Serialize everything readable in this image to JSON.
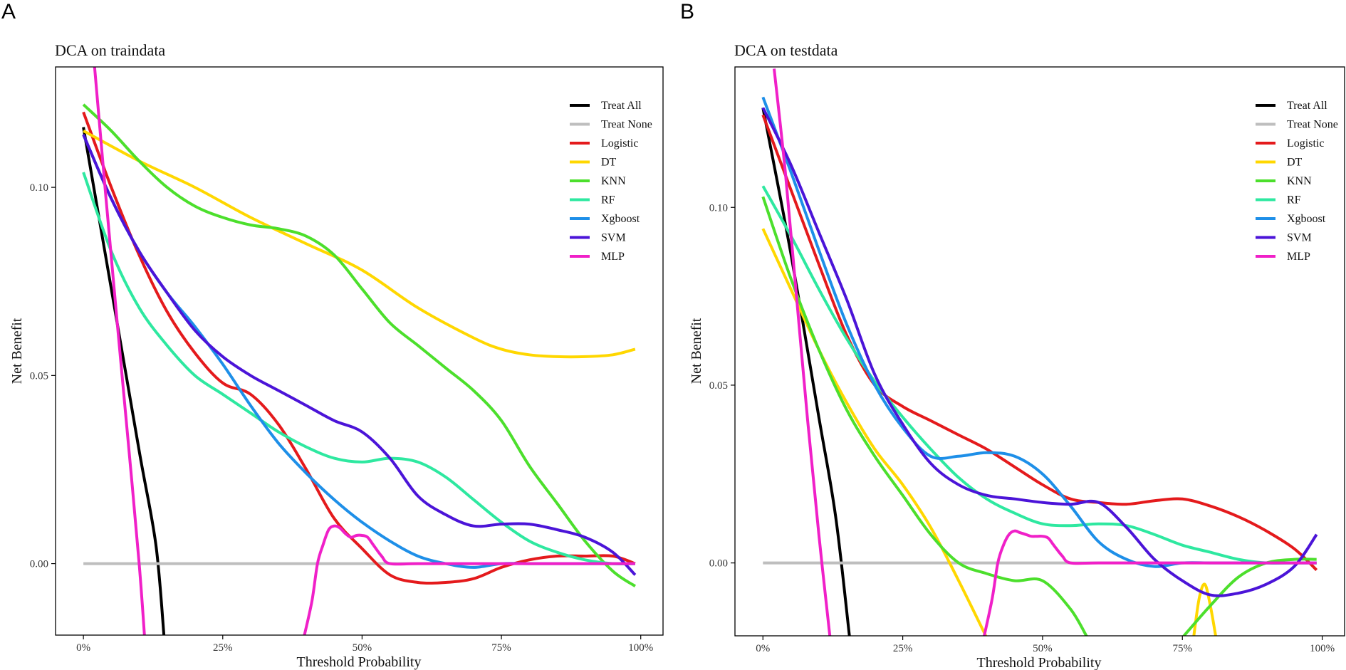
{
  "chart_data": [
    {
      "panel_label": "A",
      "type": "line",
      "title": "DCA on traindata",
      "xlabel": "Threshold Probability",
      "ylabel": "Net Benefit",
      "xlim": [
        -0.05,
        1.04
      ],
      "ylim": [
        -0.019,
        0.132
      ],
      "x_ticks": [
        0,
        0.25,
        0.5,
        0.75,
        1.0
      ],
      "x_tick_labels": [
        "0%",
        "25%",
        "50%",
        "75%",
        "100%"
      ],
      "y_ticks": [
        0.0,
        0.05,
        0.1
      ],
      "y_tick_labels": [
        "0.00",
        "0.05",
        "0.10"
      ],
      "grid": false,
      "legend_position": "top-right",
      "series": [
        {
          "name": "Treat All",
          "color": "#000000",
          "x": [
            0.0,
            0.05,
            0.1,
            0.13,
            0.145
          ],
          "y": [
            0.116,
            0.073,
            0.03,
            0.005,
            -0.02
          ]
        },
        {
          "name": "Treat None",
          "color": "#BEBEBE",
          "x": [
            0.0,
            0.99
          ],
          "y": [
            0.0,
            0.0
          ]
        },
        {
          "name": "Logistic",
          "color": "#E41A1C",
          "x": [
            0.0,
            0.05,
            0.1,
            0.15,
            0.2,
            0.25,
            0.3,
            0.35,
            0.4,
            0.45,
            0.5,
            0.55,
            0.6,
            0.65,
            0.7,
            0.75,
            0.8,
            0.85,
            0.9,
            0.95,
            0.99
          ],
          "y": [
            0.12,
            0.1,
            0.082,
            0.067,
            0.056,
            0.048,
            0.045,
            0.037,
            0.025,
            0.012,
            0.004,
            -0.003,
            -0.005,
            -0.005,
            -0.004,
            -0.001,
            0.001,
            0.002,
            0.002,
            0.002,
            0.0
          ]
        },
        {
          "name": "DT",
          "color": "#FFD700",
          "x": [
            0.0,
            0.1,
            0.2,
            0.3,
            0.4,
            0.5,
            0.6,
            0.7,
            0.75,
            0.8,
            0.85,
            0.9,
            0.95,
            0.99
          ],
          "y": [
            0.115,
            0.107,
            0.1,
            0.092,
            0.085,
            0.078,
            0.068,
            0.06,
            0.057,
            0.0555,
            0.055,
            0.055,
            0.0555,
            0.057
          ]
        },
        {
          "name": "KNN",
          "color": "#4CDF2C",
          "x": [
            0.0,
            0.05,
            0.1,
            0.15,
            0.2,
            0.25,
            0.3,
            0.35,
            0.4,
            0.45,
            0.5,
            0.55,
            0.6,
            0.65,
            0.7,
            0.75,
            0.8,
            0.85,
            0.9,
            0.95,
            0.99
          ],
          "y": [
            0.122,
            0.115,
            0.107,
            0.1,
            0.095,
            0.092,
            0.09,
            0.089,
            0.087,
            0.082,
            0.073,
            0.064,
            0.058,
            0.052,
            0.046,
            0.038,
            0.026,
            0.016,
            0.006,
            -0.002,
            -0.006
          ]
        },
        {
          "name": "RF",
          "color": "#2EE8A0",
          "x": [
            0.0,
            0.05,
            0.1,
            0.15,
            0.2,
            0.25,
            0.3,
            0.35,
            0.4,
            0.45,
            0.5,
            0.55,
            0.6,
            0.65,
            0.7,
            0.75,
            0.8,
            0.85,
            0.9,
            0.95,
            0.99
          ],
          "y": [
            0.104,
            0.083,
            0.068,
            0.058,
            0.05,
            0.045,
            0.04,
            0.035,
            0.031,
            0.028,
            0.027,
            0.028,
            0.027,
            0.023,
            0.017,
            0.011,
            0.006,
            0.003,
            0.001,
            0.0,
            0.0
          ]
        },
        {
          "name": "Xgboost",
          "color": "#1E8FE8",
          "x": [
            0.0,
            0.05,
            0.1,
            0.15,
            0.2,
            0.25,
            0.3,
            0.35,
            0.4,
            0.45,
            0.5,
            0.55,
            0.6,
            0.65,
            0.7,
            0.75,
            0.8,
            0.85,
            0.9,
            0.95,
            0.99
          ],
          "y": [
            0.114,
            0.097,
            0.083,
            0.072,
            0.063,
            0.053,
            0.042,
            0.032,
            0.024,
            0.017,
            0.011,
            0.006,
            0.002,
            0.0,
            -0.001,
            0.0,
            0.0,
            0.0,
            0.0,
            0.0,
            0.0
          ]
        },
        {
          "name": "SVM",
          "color": "#4B14D8",
          "x": [
            0.0,
            0.05,
            0.1,
            0.15,
            0.2,
            0.25,
            0.3,
            0.35,
            0.4,
            0.45,
            0.5,
            0.55,
            0.6,
            0.65,
            0.7,
            0.75,
            0.8,
            0.85,
            0.9,
            0.95,
            0.99
          ],
          "y": [
            0.114,
            0.097,
            0.083,
            0.072,
            0.062,
            0.055,
            0.05,
            0.046,
            0.042,
            0.038,
            0.035,
            0.028,
            0.018,
            0.013,
            0.01,
            0.0105,
            0.0105,
            0.009,
            0.007,
            0.003,
            -0.003
          ]
        },
        {
          "name": "MLP",
          "color": "#F020C8",
          "segments": [
            {
              "x": [
                0.02,
                0.04,
                0.06,
                0.08,
                0.1,
                0.11
              ],
              "y": [
                0.132,
                0.098,
                0.065,
                0.033,
                0.0,
                -0.02
              ]
            },
            {
              "x": [
                0.395,
                0.41,
                0.42,
                0.43,
                0.44,
                0.45,
                0.46,
                0.47,
                0.48,
                0.49,
                0.5,
                0.51,
                0.52,
                0.535,
                0.55,
                0.6,
                0.7,
                0.8,
                0.9,
                0.99
              ],
              "y": [
                -0.02,
                -0.01,
                0.0,
                0.005,
                0.009,
                0.01,
                0.0095,
                0.008,
                0.007,
                0.0075,
                0.0075,
                0.007,
                0.005,
                0.002,
                0.0,
                0.0,
                0.0,
                0.0,
                0.0,
                0.0
              ]
            }
          ]
        }
      ]
    },
    {
      "panel_label": "B",
      "type": "line",
      "title": "DCA on testdata",
      "xlabel": "Threshold Probability",
      "ylabel": "Net Benefit",
      "xlim": [
        -0.05,
        1.04
      ],
      "ylim": [
        -0.0205,
        0.1395
      ],
      "x_ticks": [
        0,
        0.25,
        0.5,
        0.75,
        1.0
      ],
      "x_tick_labels": [
        "0%",
        "25%",
        "50%",
        "75%",
        "100%"
      ],
      "y_ticks": [
        0.0,
        0.05,
        0.1
      ],
      "y_tick_labels": [
        "0.00",
        "0.05",
        "0.10"
      ],
      "grid": false,
      "legend_position": "top-right",
      "series": [
        {
          "name": "Treat All",
          "color": "#000000",
          "x": [
            0.0,
            0.05,
            0.1,
            0.13,
            0.155
          ],
          "y": [
            0.128,
            0.087,
            0.041,
            0.013,
            -0.021
          ]
        },
        {
          "name": "Treat None",
          "color": "#BEBEBE",
          "x": [
            0.0,
            0.99
          ],
          "y": [
            0.0,
            0.0
          ]
        },
        {
          "name": "Logistic",
          "color": "#E41A1C",
          "x": [
            0.0,
            0.05,
            0.1,
            0.15,
            0.2,
            0.25,
            0.3,
            0.35,
            0.4,
            0.45,
            0.5,
            0.55,
            0.6,
            0.65,
            0.7,
            0.75,
            0.8,
            0.85,
            0.9,
            0.95,
            0.99
          ],
          "y": [
            0.126,
            0.105,
            0.084,
            0.064,
            0.05,
            0.044,
            0.04,
            0.036,
            0.032,
            0.027,
            0.022,
            0.018,
            0.017,
            0.0165,
            0.0175,
            0.018,
            0.016,
            0.013,
            0.009,
            0.004,
            -0.002
          ]
        },
        {
          "name": "DT",
          "color": "#FFD700",
          "segments": [
            {
              "x": [
                0.0,
                0.05,
                0.1,
                0.15,
                0.2,
                0.25,
                0.3,
                0.35,
                0.4
              ],
              "y": [
                0.094,
                0.077,
                0.06,
                0.045,
                0.032,
                0.022,
                0.01,
                -0.005,
                -0.021
              ]
            },
            {
              "x": [
                0.77,
                0.78,
                0.79,
                0.8,
                0.81
              ],
              "y": [
                -0.021,
                -0.01,
                -0.006,
                -0.012,
                -0.021
              ]
            }
          ]
        },
        {
          "name": "KNN",
          "color": "#4CDF2C",
          "segments": [
            {
              "x": [
                0.0,
                0.05,
                0.1,
                0.15,
                0.2,
                0.25,
                0.3,
                0.35,
                0.4,
                0.45,
                0.5,
                0.55,
                0.58
              ],
              "y": [
                0.103,
                0.08,
                0.06,
                0.043,
                0.03,
                0.019,
                0.008,
                0.0,
                -0.003,
                -0.005,
                -0.005,
                -0.013,
                -0.021
              ]
            },
            {
              "x": [
                0.75,
                0.8,
                0.85,
                0.9,
                0.95,
                0.99
              ],
              "y": [
                -0.021,
                -0.012,
                -0.004,
                0.0,
                0.001,
                0.001
              ]
            }
          ]
        },
        {
          "name": "RF",
          "color": "#2EE8A0",
          "x": [
            0.0,
            0.05,
            0.1,
            0.15,
            0.2,
            0.25,
            0.3,
            0.35,
            0.4,
            0.45,
            0.5,
            0.55,
            0.6,
            0.65,
            0.7,
            0.75,
            0.8,
            0.85,
            0.9,
            0.95,
            0.99
          ],
          "y": [
            0.106,
            0.092,
            0.077,
            0.063,
            0.051,
            0.041,
            0.032,
            0.024,
            0.018,
            0.014,
            0.011,
            0.0105,
            0.011,
            0.0105,
            0.008,
            0.005,
            0.003,
            0.001,
            0.0,
            0.0,
            0.0
          ]
        },
        {
          "name": "Xgboost",
          "color": "#1E8FE8",
          "x": [
            0.0,
            0.05,
            0.1,
            0.15,
            0.2,
            0.25,
            0.3,
            0.35,
            0.4,
            0.45,
            0.5,
            0.55,
            0.6,
            0.65,
            0.7,
            0.75,
            0.8,
            0.85,
            0.9,
            0.95,
            0.99
          ],
          "y": [
            0.131,
            0.11,
            0.088,
            0.067,
            0.05,
            0.038,
            0.03,
            0.03,
            0.031,
            0.03,
            0.025,
            0.016,
            0.006,
            0.001,
            -0.001,
            0.0,
            0.0,
            0.0,
            0.0,
            0.0,
            0.0
          ]
        },
        {
          "name": "SVM",
          "color": "#4B14D8",
          "x": [
            0.0,
            0.05,
            0.1,
            0.15,
            0.2,
            0.25,
            0.3,
            0.35,
            0.4,
            0.45,
            0.5,
            0.55,
            0.6,
            0.65,
            0.7,
            0.75,
            0.8,
            0.85,
            0.9,
            0.95,
            0.99
          ],
          "y": [
            0.128,
            0.112,
            0.093,
            0.074,
            0.053,
            0.039,
            0.028,
            0.022,
            0.019,
            0.018,
            0.017,
            0.0165,
            0.017,
            0.01,
            0.001,
            -0.005,
            -0.009,
            -0.0085,
            -0.006,
            -0.001,
            0.008
          ]
        },
        {
          "name": "MLP",
          "color": "#F020C8",
          "segments": [
            {
              "x": [
                0.02,
                0.04,
                0.06,
                0.08,
                0.1,
                0.12
              ],
              "y": [
                0.139,
                0.11,
                0.075,
                0.04,
                0.008,
                -0.021
              ]
            },
            {
              "x": [
                0.395,
                0.41,
                0.42,
                0.43,
                0.44,
                0.45,
                0.46,
                0.47,
                0.48,
                0.49,
                0.5,
                0.51,
                0.52,
                0.535,
                0.55,
                0.6,
                0.7,
                0.8,
                0.9,
                0.99
              ],
              "y": [
                -0.021,
                -0.01,
                0.0,
                0.005,
                0.008,
                0.009,
                0.0085,
                0.008,
                0.0075,
                0.0075,
                0.0075,
                0.007,
                0.005,
                0.002,
                0.0,
                0.0,
                0.0,
                0.0,
                0.0,
                0.0
              ]
            }
          ]
        }
      ]
    }
  ]
}
